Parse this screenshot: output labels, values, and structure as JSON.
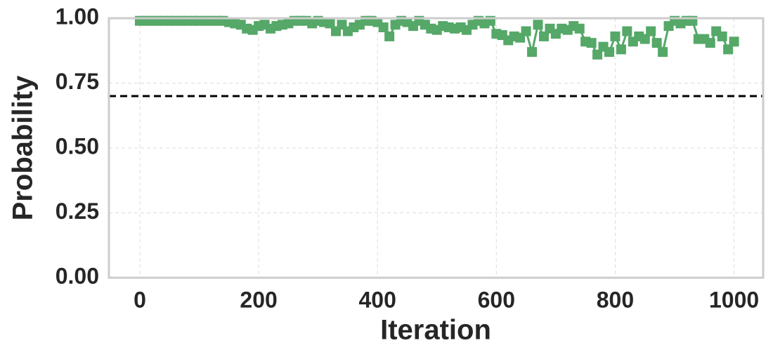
{
  "chart_data": {
    "type": "line",
    "xlabel": "Iteration",
    "ylabel": "Probability",
    "x": [
      0,
      10,
      20,
      30,
      40,
      50,
      60,
      70,
      80,
      90,
      100,
      110,
      120,
      130,
      140,
      150,
      160,
      170,
      180,
      190,
      200,
      210,
      220,
      230,
      240,
      250,
      260,
      270,
      280,
      290,
      300,
      310,
      320,
      330,
      340,
      350,
      360,
      370,
      380,
      390,
      400,
      410,
      420,
      430,
      440,
      450,
      460,
      470,
      480,
      490,
      500,
      510,
      520,
      530,
      540,
      550,
      560,
      570,
      580,
      590,
      600,
      610,
      620,
      630,
      640,
      650,
      660,
      670,
      680,
      690,
      700,
      710,
      720,
      730,
      740,
      750,
      760,
      770,
      780,
      790,
      800,
      810,
      820,
      830,
      840,
      850,
      860,
      870,
      880,
      890,
      900,
      910,
      920,
      930,
      940,
      950,
      960,
      970,
      980,
      990,
      1000
    ],
    "series": [
      {
        "name": "Probability",
        "color": "#55a868",
        "values": [
          0.99,
          0.99,
          0.99,
          0.99,
          0.99,
          0.99,
          0.99,
          0.99,
          0.99,
          0.99,
          0.99,
          0.99,
          0.99,
          0.99,
          0.99,
          0.985,
          0.98,
          0.975,
          0.96,
          0.955,
          0.97,
          0.975,
          0.96,
          0.97,
          0.975,
          0.98,
          0.99,
          0.99,
          0.99,
          0.98,
          0.99,
          0.985,
          0.98,
          0.95,
          0.975,
          0.95,
          0.965,
          0.975,
          0.99,
          0.99,
          0.985,
          0.965,
          0.93,
          0.975,
          0.99,
          0.985,
          0.97,
          0.99,
          0.975,
          0.96,
          0.955,
          0.97,
          0.965,
          0.96,
          0.965,
          0.955,
          0.975,
          0.99,
          0.98,
          0.99,
          0.94,
          0.935,
          0.915,
          0.93,
          0.925,
          0.95,
          0.87,
          0.975,
          0.93,
          0.96,
          0.94,
          0.96,
          0.955,
          0.97,
          0.96,
          0.91,
          0.905,
          0.86,
          0.89,
          0.87,
          0.93,
          0.88,
          0.95,
          0.91,
          0.93,
          0.92,
          0.95,
          0.905,
          0.87,
          0.97,
          0.99,
          0.98,
          0.99,
          0.99,
          0.92,
          0.92,
          0.905,
          0.95,
          0.93,
          0.88,
          0.91
        ]
      }
    ],
    "hline": 0.7,
    "xlim": [
      -52,
      1049
    ],
    "xticks": [
      0,
      200,
      400,
      600,
      800,
      1000
    ],
    "ylim": [
      0,
      1
    ],
    "yticks": [
      {
        "value": 0,
        "label": "0.00"
      },
      {
        "value": 0.25,
        "label": "0.25"
      },
      {
        "value": 0.5,
        "label": "0.50"
      },
      {
        "value": 0.75,
        "label": "0.75"
      },
      {
        "value": 1,
        "label": "1.00"
      }
    ],
    "grid": true
  }
}
